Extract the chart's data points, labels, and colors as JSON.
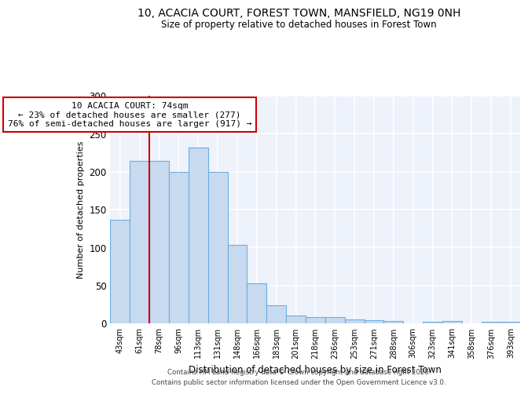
{
  "title1": "10, ACACIA COURT, FOREST TOWN, MANSFIELD, NG19 0NH",
  "title2": "Size of property relative to detached houses in Forest Town",
  "xlabel": "Distribution of detached houses by size in Forest Town",
  "ylabel": "Number of detached properties",
  "categories": [
    "43sqm",
    "61sqm",
    "78sqm",
    "96sqm",
    "113sqm",
    "131sqm",
    "148sqm",
    "166sqm",
    "183sqm",
    "201sqm",
    "218sqm",
    "236sqm",
    "253sqm",
    "271sqm",
    "288sqm",
    "306sqm",
    "323sqm",
    "341sqm",
    "358sqm",
    "376sqm",
    "393sqm"
  ],
  "values": [
    137,
    214,
    214,
    200,
    232,
    200,
    103,
    53,
    24,
    10,
    8,
    8,
    5,
    4,
    3,
    0,
    2,
    3,
    0,
    2,
    2
  ],
  "bar_color": "#c8daf0",
  "bar_edge_color": "#6aaee0",
  "ref_line_x": 1.5,
  "ref_line_color": "#cc0000",
  "annotation_line1": "10 ACACIA COURT: 74sqm",
  "annotation_line2": "← 23% of detached houses are smaller (277)",
  "annotation_line3": "76% of semi-detached houses are larger (917) →",
  "annotation_box_color": "white",
  "annotation_edge_color": "#cc0000",
  "ylim": [
    0,
    300
  ],
  "yticks": [
    0,
    50,
    100,
    150,
    200,
    250,
    300
  ],
  "bg_color": "#eef2fa",
  "grid_color": "white",
  "footer1": "Contains HM Land Registry data © Crown copyright and database right 2025.",
  "footer2": "Contains public sector information licensed under the Open Government Licence v3.0."
}
